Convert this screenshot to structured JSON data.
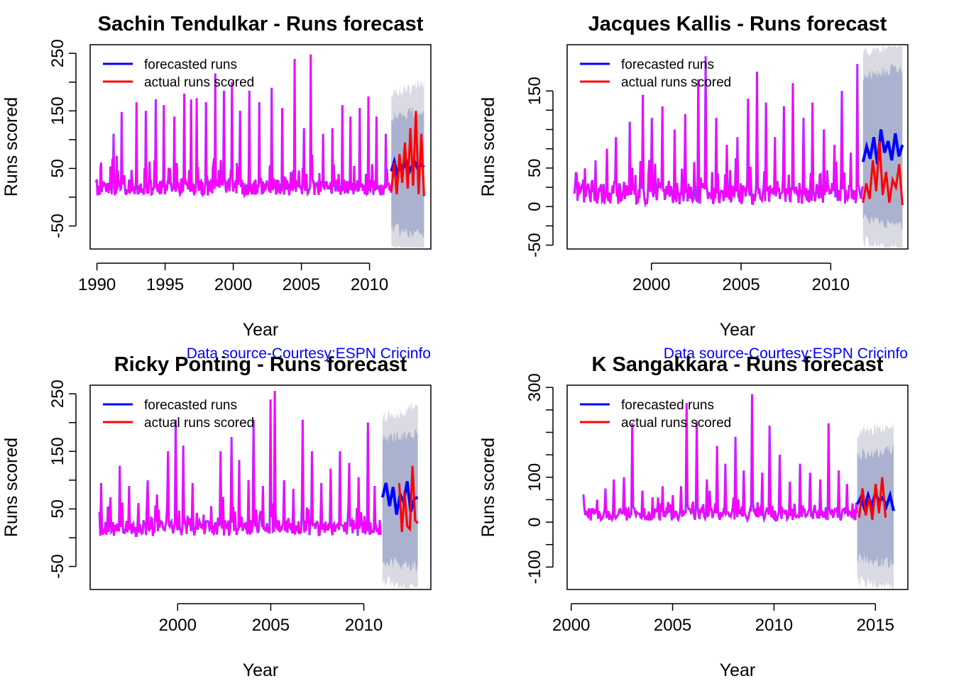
{
  "colors": {
    "forecast": "#0000ff",
    "actual": "#ff0000",
    "history": "#ff00ff",
    "band_inner": "#aab2cf",
    "band_outer": "#d9dae2",
    "source_text": "#0000ff"
  },
  "legend_labels": [
    "forecasted runs",
    "actual runs scored"
  ],
  "source_note": "Data source-Courtesy:ESPN Cricinfo",
  "chart_data": [
    {
      "type": "line",
      "title": "Sachin Tendulkar - Runs forecast",
      "xlabel": "Year",
      "ylabel": "Runs scored",
      "xlim": [
        1989.5,
        2014.5
      ],
      "ylim": [
        -90,
        265
      ],
      "xticks": [
        1990,
        1995,
        2000,
        2005,
        2010
      ],
      "yticks": [
        -50,
        50,
        150,
        250
      ],
      "legend": "top-left",
      "history": {
        "start": 1989.9,
        "end": 2011.6,
        "peaks": [
          [
            1990.3,
            60
          ],
          [
            1991.2,
            110
          ],
          [
            1991.8,
            148
          ],
          [
            1992.9,
            165
          ],
          [
            1993.6,
            150
          ],
          [
            1994.3,
            170
          ],
          [
            1994.9,
            160
          ],
          [
            1995.7,
            140
          ],
          [
            1996.4,
            180
          ],
          [
            1996.9,
            170
          ],
          [
            1997.3,
            172
          ],
          [
            1998.0,
            165
          ],
          [
            1998.7,
            215
          ],
          [
            1999.3,
            185
          ],
          [
            1999.9,
            200
          ],
          [
            2000.5,
            150
          ],
          [
            2001.2,
            185
          ],
          [
            2001.9,
            165
          ],
          [
            2002.8,
            190
          ],
          [
            2003.6,
            155
          ],
          [
            2004.5,
            240
          ],
          [
            2005.2,
            120
          ],
          [
            2005.7,
            248
          ],
          [
            2006.6,
            110
          ],
          [
            2007.3,
            120
          ],
          [
            2008.0,
            160
          ],
          [
            2008.6,
            140
          ],
          [
            2009.3,
            155
          ],
          [
            2009.9,
            175
          ],
          [
            2010.5,
            140
          ],
          [
            2011.2,
            110
          ]
        ]
      },
      "forecast": {
        "start": 2011.6,
        "end": 2014.0,
        "values": [
          45,
          62,
          40,
          58,
          50,
          63,
          44,
          55,
          60,
          48,
          57,
          52
        ]
      },
      "actual": {
        "start": 2011.6,
        "end": 2014.0,
        "values": [
          10,
          60,
          5,
          75,
          25,
          95,
          15,
          120,
          20,
          150,
          5,
          110,
          2
        ]
      },
      "interval80": {
        "low": -55,
        "high": 140
      },
      "interval95": {
        "low": -90,
        "high": 180
      },
      "source_note": "Data source-Courtesy:ESPN Cricinfo"
    },
    {
      "type": "line",
      "title": "Jacques Kallis - Runs forecast",
      "xlabel": "Year",
      "ylabel": "Runs scored",
      "xlim": [
        1995.3,
        2014.3
      ],
      "ylim": [
        -55,
        210
      ],
      "xticks": [
        2000,
        2005,
        2010
      ],
      "yticks": [
        -50,
        0,
        50,
        150
      ],
      "legend": "top-left",
      "history": {
        "start": 1995.7,
        "end": 2011.8,
        "peaks": [
          [
            1996.2,
            35
          ],
          [
            1996.9,
            60
          ],
          [
            1997.5,
            75
          ],
          [
            1998.0,
            90
          ],
          [
            1998.8,
            110
          ],
          [
            1999.5,
            145
          ],
          [
            2000.0,
            115
          ],
          [
            2000.6,
            130
          ],
          [
            2001.3,
            100
          ],
          [
            2001.9,
            120
          ],
          [
            2002.6,
            165
          ],
          [
            2003.0,
            195
          ],
          [
            2003.6,
            115
          ],
          [
            2004.2,
            80
          ],
          [
            2004.8,
            90
          ],
          [
            2005.4,
            140
          ],
          [
            2005.9,
            175
          ],
          [
            2006.4,
            135
          ],
          [
            2006.9,
            90
          ],
          [
            2007.4,
            130
          ],
          [
            2007.9,
            160
          ],
          [
            2008.5,
            115
          ],
          [
            2009.0,
            135
          ],
          [
            2009.6,
            100
          ],
          [
            2010.2,
            80
          ],
          [
            2010.6,
            150
          ],
          [
            2011.1,
            70
          ],
          [
            2011.5,
            185
          ]
        ]
      },
      "forecast": {
        "start": 2011.8,
        "end": 2014.0,
        "values": [
          58,
          78,
          62,
          90,
          55,
          100,
          70,
          85,
          60,
          95,
          65,
          80
        ]
      },
      "actual": {
        "start": 2011.8,
        "end": 2014.0,
        "values": [
          5,
          30,
          10,
          60,
          20,
          85,
          15,
          45,
          5,
          35,
          25,
          55,
          2
        ]
      },
      "interval80": {
        "low": -15,
        "high": 170
      },
      "interval95": {
        "low": -45,
        "high": 200
      },
      "source_note": "Data source-Courtesy:ESPN Cricinfo"
    },
    {
      "type": "line",
      "title": "Ricky Ponting - Runs forecast",
      "xlabel": "Year",
      "ylabel": "Runs scored",
      "xlim": [
        1995.3,
        2013.6
      ],
      "ylim": [
        -90,
        265
      ],
      "xticks": [
        2000,
        2005,
        2010
      ],
      "yticks": [
        -50,
        50,
        150,
        250
      ],
      "legend": "top-left",
      "history": {
        "start": 1995.8,
        "end": 2010.9,
        "peaks": [
          [
            1995.9,
            95
          ],
          [
            1996.4,
            70
          ],
          [
            1996.9,
            125
          ],
          [
            1997.4,
            90
          ],
          [
            1997.9,
            60
          ],
          [
            1998.4,
            100
          ],
          [
            1998.9,
            75
          ],
          [
            1999.5,
            150
          ],
          [
            1999.9,
            205
          ],
          [
            2000.3,
            160
          ],
          [
            2000.8,
            95
          ],
          [
            2001.4,
            40
          ],
          [
            2001.8,
            55
          ],
          [
            2002.3,
            150
          ],
          [
            2002.9,
            175
          ],
          [
            2003.3,
            135
          ],
          [
            2003.8,
            100
          ],
          [
            2004.1,
            205
          ],
          [
            2004.6,
            90
          ],
          [
            2005.0,
            240
          ],
          [
            2005.2,
            255
          ],
          [
            2005.7,
            100
          ],
          [
            2006.2,
            85
          ],
          [
            2006.7,
            205
          ],
          [
            2007.2,
            150
          ],
          [
            2007.7,
            95
          ],
          [
            2008.2,
            120
          ],
          [
            2008.7,
            150
          ],
          [
            2009.2,
            130
          ],
          [
            2009.7,
            105
          ],
          [
            2010.2,
            200
          ],
          [
            2010.6,
            90
          ]
        ]
      },
      "forecast": {
        "start": 2011.0,
        "end": 2012.9,
        "values": [
          70,
          95,
          55,
          88,
          40,
          75,
          62,
          98,
          45,
          68,
          70
        ]
      },
      "actual": {
        "start": 2011.9,
        "end": 2012.9,
        "values": [
          95,
          10,
          80,
          20,
          15,
          125,
          30,
          25
        ]
      },
      "interval80": {
        "low": -40,
        "high": 170
      },
      "interval95": {
        "low": -75,
        "high": 210
      },
      "source_note": "Data source-Courtesy:ESPN Cricinfo"
    },
    {
      "type": "line",
      "title": "K Sangakkara - Runs forecast",
      "xlabel": "Year",
      "ylabel": "Runs scored",
      "xlim": [
        1999.8,
        2016.6
      ],
      "ylim": [
        -150,
        305
      ],
      "xticks": [
        2000,
        2005,
        2010,
        2015
      ],
      "yticks": [
        -100,
        0,
        100,
        300
      ],
      "legend": "top-left",
      "history": {
        "start": 2000.6,
        "end": 2014.1,
        "peaks": [
          [
            2000.9,
            25
          ],
          [
            2001.3,
            50
          ],
          [
            2001.7,
            75
          ],
          [
            2002.1,
            95
          ],
          [
            2002.6,
            100
          ],
          [
            2003.0,
            220
          ],
          [
            2003.5,
            70
          ],
          [
            2004.0,
            55
          ],
          [
            2004.5,
            80
          ],
          [
            2005.0,
            60
          ],
          [
            2005.4,
            80
          ],
          [
            2005.7,
            265
          ],
          [
            2006.2,
            225
          ],
          [
            2006.7,
            95
          ],
          [
            2007.2,
            170
          ],
          [
            2007.6,
            130
          ],
          [
            2008.1,
            190
          ],
          [
            2008.5,
            115
          ],
          [
            2008.9,
            285
          ],
          [
            2009.4,
            110
          ],
          [
            2009.8,
            215
          ],
          [
            2010.3,
            150
          ],
          [
            2010.8,
            90
          ],
          [
            2011.3,
            130
          ],
          [
            2011.8,
            110
          ],
          [
            2012.3,
            95
          ],
          [
            2012.7,
            220
          ],
          [
            2013.2,
            115
          ],
          [
            2013.6,
            85
          ]
        ]
      },
      "forecast": {
        "start": 2014.1,
        "end": 2015.9,
        "values": [
          40,
          55,
          30,
          60,
          35,
          65,
          45,
          55,
          35,
          60,
          25
        ]
      },
      "actual": {
        "start": 2014.2,
        "end": 2015.5,
        "values": [
          10,
          75,
          15,
          55,
          5,
          85,
          20,
          100,
          10
        ]
      },
      "interval80": {
        "low": -80,
        "high": 150
      },
      "interval95": {
        "low": -130,
        "high": 200
      },
      "source_note": "Data source-Courtesy:ESPN Cricinfo"
    }
  ]
}
